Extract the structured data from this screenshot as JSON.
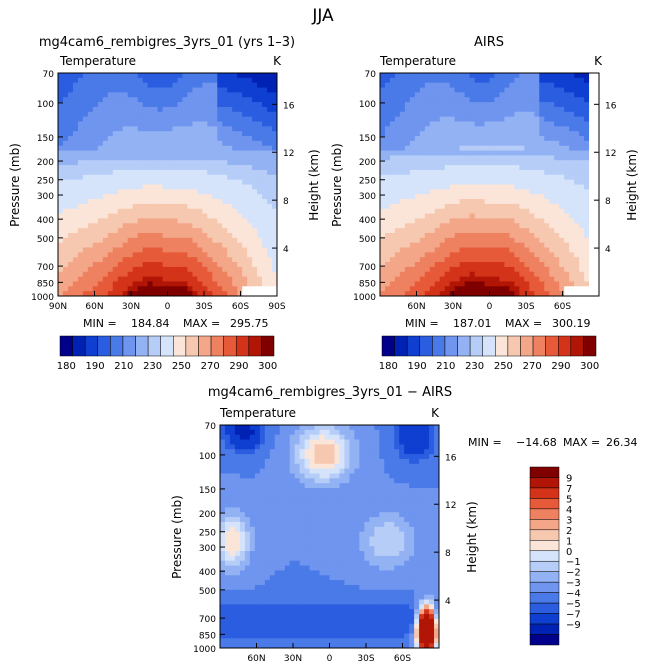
{
  "figure": {
    "title": "JJA"
  },
  "colors": {
    "abs": [
      "#00008b",
      "#0022b4",
      "#0e3fd1",
      "#2a5ddf",
      "#4a7ae8",
      "#6f95ef",
      "#93b2f4",
      "#b6cdf8",
      "#d5e4fb",
      "#fbe5d9",
      "#f7c8b0",
      "#f3a688",
      "#ee8160",
      "#e65a3a",
      "#d33318",
      "#b01505",
      "#800000"
    ],
    "diff": [
      "#00008b",
      "#0022b4",
      "#0e3fd1",
      "#2a5ddf",
      "#4a7ae8",
      "#6f95ef",
      "#93b2f4",
      "#b6cdf8",
      "#d5e4fb",
      "#fbe5d9",
      "#f7c8b0",
      "#f3a688",
      "#ee8160",
      "#e65a3a",
      "#d33318",
      "#b01505",
      "#800000"
    ]
  },
  "chart_data": [
    {
      "type": "heatmap",
      "panel": "top-left",
      "title": "mg4cam6_rembigres_3yrs_01 (yrs 1–3)",
      "variable_label": "Temperature",
      "units": "K",
      "ylabel": "Pressure (mb)",
      "y2label": "Height (km)",
      "x_ticks": [
        "90N",
        "60N",
        "30N",
        "0",
        "30S",
        "60S",
        "90S"
      ],
      "y_ticks": [
        70,
        100,
        150,
        200,
        250,
        300,
        400,
        500,
        700,
        850,
        1000
      ],
      "y2_ticks": [
        4,
        8,
        12,
        16
      ],
      "xlim": [
        90,
        -90
      ],
      "ylim": [
        1000,
        70
      ],
      "stats": {
        "min_label": "MIN =",
        "min": "184.84",
        "max_label": "MAX =",
        "max": "295.75"
      },
      "colorbar_labels": [
        "180",
        "190",
        "210",
        "230",
        "250",
        "270",
        "290",
        "300"
      ]
    },
    {
      "type": "heatmap",
      "panel": "top-right",
      "title": "AIRS",
      "variable_label": "Temperature",
      "units": "K",
      "ylabel": "Pressure (mb)",
      "y2label": "Height (km)",
      "x_ticks": [
        "60N",
        "30N",
        "0",
        "30S",
        "60S"
      ],
      "y_ticks": [
        70,
        100,
        150,
        200,
        250,
        300,
        400,
        500,
        700,
        850,
        1000
      ],
      "y2_ticks": [
        4,
        8,
        12,
        16
      ],
      "xlim": [
        90,
        -90
      ],
      "ylim": [
        1000,
        70
      ],
      "stats": {
        "min_label": "MIN =",
        "min": "187.01",
        "max_label": "MAX =",
        "max": "300.19"
      },
      "colorbar_labels": [
        "180",
        "190",
        "210",
        "230",
        "250",
        "270",
        "290",
        "300"
      ]
    },
    {
      "type": "heatmap",
      "panel": "bottom",
      "title": "mg4cam6_rembigres_3yrs_01 − AIRS",
      "variable_label": "Temperature",
      "units": "K",
      "ylabel": "Pressure (mb)",
      "y2label": "Height (km)",
      "x_ticks": [
        "60N",
        "30N",
        "0",
        "30S",
        "60S"
      ],
      "y_ticks": [
        70,
        100,
        150,
        200,
        250,
        300,
        400,
        500,
        700,
        850,
        1000
      ],
      "y2_ticks": [
        4,
        8,
        12,
        16
      ],
      "xlim": [
        90,
        -90
      ],
      "ylim": [
        1000,
        70
      ],
      "stats": {
        "min_label": "MIN =",
        "min": "−14.68",
        "max_label": "MAX =",
        "max": "26.34"
      },
      "colorbar_labels": [
        "9",
        "7",
        "5",
        "4",
        "3",
        "2",
        "1",
        "0",
        "−1",
        "−2",
        "−3",
        "−4",
        "−5",
        "−7",
        "−9"
      ]
    }
  ]
}
